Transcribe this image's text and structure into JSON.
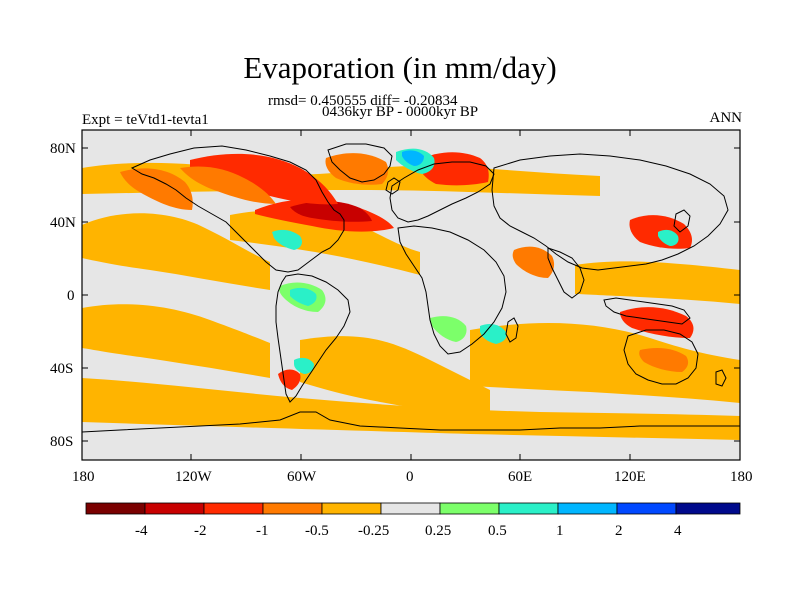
{
  "title": "Evaporation (in mm/day)",
  "stats": {
    "line1": "rmsd= 0.450555 diff= -0.20834",
    "line2": "0436kyr BP - 0000kyr BP"
  },
  "labels": {
    "left": "Expt = teVtd1-tevta1",
    "right": "ANN"
  },
  "axes": {
    "lat_ticks": [
      "80N",
      "40N",
      "0",
      "40S",
      "80S"
    ],
    "lon_ticks": [
      "180",
      "120W",
      "60W",
      "0",
      "60E",
      "120E",
      "180"
    ]
  },
  "colorbar": {
    "labels": [
      "-4",
      "-2",
      "-1",
      "-0.5",
      "-0.25",
      "0.25",
      "0.5",
      "1",
      "2",
      "4"
    ],
    "colors": [
      "#7a0000",
      "#c80000",
      "#ff2a00",
      "#ff7a00",
      "#ffb400",
      "#e6e6e6",
      "#7cff6a",
      "#2af0c8",
      "#00b6ff",
      "#0048ff",
      "#000a8c"
    ]
  },
  "palette": {
    "background_ocean": "#e6e6e6",
    "coastline": "#000000",
    "strong_neg": "#c80000",
    "neg": "#ff2a00",
    "neg_orange": "#ff7a00",
    "light_neg": "#ffb400",
    "pos_green": "#7cff6a",
    "pos_cyan": "#2af0c8",
    "pos_blue": "#00b6ff"
  }
}
